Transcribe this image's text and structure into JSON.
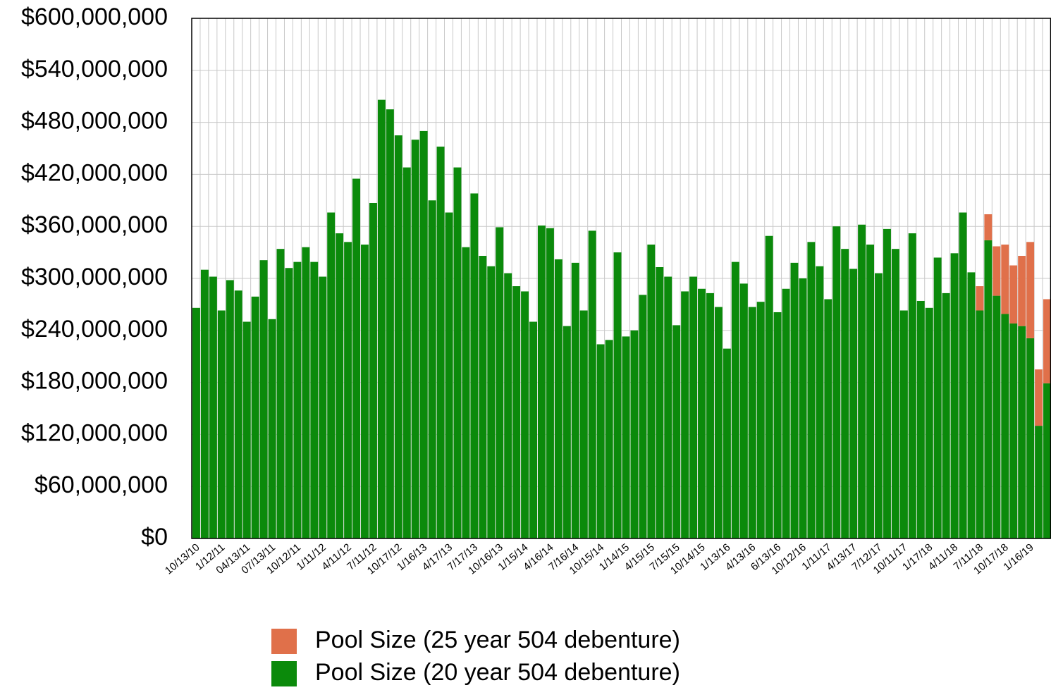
{
  "chart_data": {
    "type": "stacked_bar",
    "categories": [
      "10/13/10",
      null,
      null,
      "1/12/11",
      null,
      null,
      "04/13/11",
      null,
      null,
      "07/13/11",
      null,
      null,
      "10/12/11",
      null,
      null,
      "1/11/12",
      null,
      null,
      "4/11/12",
      null,
      null,
      "7/11/12",
      null,
      null,
      "10/17/12",
      null,
      null,
      "1/16/13",
      null,
      null,
      "4/17/13",
      null,
      null,
      "7/17/13",
      null,
      null,
      "10/16/13",
      null,
      null,
      "1/15/14",
      null,
      null,
      "4/16/14",
      null,
      null,
      "7/16/14",
      null,
      null,
      "10/15/14",
      null,
      null,
      "1/14/15",
      null,
      null,
      "4/15/15",
      null,
      null,
      "7/15/15",
      null,
      null,
      "10/14/15",
      null,
      null,
      "1/13/16",
      null,
      null,
      "4/13/16",
      null,
      null,
      "6/13/16",
      null,
      null,
      "10/12/16",
      null,
      null,
      "1/11/17",
      null,
      null,
      "4/13/17",
      null,
      null,
      "7/12/17",
      null,
      null,
      "10/11/17",
      null,
      null,
      "1/17/18",
      null,
      null,
      "4/11/18",
      null,
      null,
      "7/11/18",
      null,
      null,
      "10/17/18",
      null,
      null,
      "1/16/19",
      null,
      null
    ],
    "series": [
      {
        "name": "Pool Size (20 year 504 debenture)",
        "color": "#0b8a0b",
        "values": [
          266000000,
          310000000,
          302000000,
          263000000,
          298000000,
          286000000,
          250000000,
          279000000,
          321000000,
          253000000,
          334000000,
          312000000,
          319000000,
          336000000,
          319000000,
          302000000,
          376000000,
          352000000,
          342000000,
          415000000,
          339000000,
          387000000,
          506000000,
          495000000,
          465000000,
          428000000,
          460000000,
          470000000,
          390000000,
          452000000,
          376000000,
          428000000,
          336000000,
          398000000,
          326000000,
          314000000,
          359000000,
          306000000,
          291000000,
          285000000,
          250000000,
          361000000,
          358000000,
          322000000,
          245000000,
          318000000,
          263000000,
          355000000,
          224000000,
          229000000,
          330000000,
          233000000,
          240000000,
          281000000,
          339000000,
          313000000,
          302000000,
          246000000,
          285000000,
          302000000,
          288000000,
          283000000,
          267000000,
          219000000,
          319000000,
          294000000,
          267000000,
          273000000,
          349000000,
          261000000,
          288000000,
          318000000,
          300000000,
          342000000,
          314000000,
          276000000,
          360000000,
          334000000,
          311000000,
          362000000,
          339000000,
          306000000,
          357000000,
          334000000,
          263000000,
          352000000,
          274000000,
          266000000,
          324000000,
          283000000,
          329000000,
          376000000,
          307000000,
          263000000,
          344000000,
          280000000,
          259000000,
          248000000,
          245000000,
          231000000,
          130000000,
          179000000
        ]
      },
      {
        "name": "Pool Size (25 year 504 debenture)",
        "color": "#e0704a",
        "values": [
          0,
          0,
          0,
          0,
          0,
          0,
          0,
          0,
          0,
          0,
          0,
          0,
          0,
          0,
          0,
          0,
          0,
          0,
          0,
          0,
          0,
          0,
          0,
          0,
          0,
          0,
          0,
          0,
          0,
          0,
          0,
          0,
          0,
          0,
          0,
          0,
          0,
          0,
          0,
          0,
          0,
          0,
          0,
          0,
          0,
          0,
          0,
          0,
          0,
          0,
          0,
          0,
          0,
          0,
          0,
          0,
          0,
          0,
          0,
          0,
          0,
          0,
          0,
          0,
          0,
          0,
          0,
          0,
          0,
          0,
          0,
          0,
          0,
          0,
          0,
          0,
          0,
          0,
          0,
          0,
          0,
          0,
          0,
          0,
          0,
          0,
          0,
          0,
          0,
          0,
          0,
          0,
          0,
          28000000,
          30000000,
          57000000,
          80000000,
          67000000,
          81000000,
          111000000,
          65000000,
          97000000
        ]
      }
    ],
    "ylim": [
      0,
      600000000
    ],
    "yticks": [
      {
        "value": 0,
        "label": "$0"
      },
      {
        "value": 60000000,
        "label": "$60,000,000"
      },
      {
        "value": 120000000,
        "label": "$120,000,000"
      },
      {
        "value": 180000000,
        "label": "$180,000,000"
      },
      {
        "value": 240000000,
        "label": "$240,000,000"
      },
      {
        "value": 300000000,
        "label": "$300,000,000"
      },
      {
        "value": 360000000,
        "label": "$360,000,000"
      },
      {
        "value": 420000000,
        "label": "$420,000,000"
      },
      {
        "value": 480000000,
        "label": "$480,000,000"
      },
      {
        "value": 540000000,
        "label": "$540,000,000"
      },
      {
        "value": 600000000,
        "label": "$600,000,000"
      }
    ],
    "grid": true
  }
}
